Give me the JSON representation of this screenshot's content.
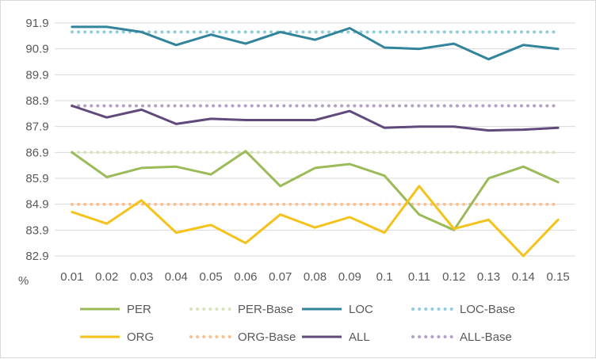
{
  "chart_data": {
    "type": "line",
    "title": "",
    "xlabel": "",
    "ylabel": "%",
    "categories": [
      "0.01",
      "0.02",
      "0.03",
      "0.04",
      "0.05",
      "0.06",
      "0.07",
      "0.08",
      "0.09",
      "0.1",
      "0.11",
      "0.12",
      "0.13",
      "0.14",
      "0.15"
    ],
    "yticks": [
      "82.9",
      "83.9",
      "84.9",
      "85.9",
      "86.9",
      "87.9",
      "88.9",
      "89.9",
      "90.9",
      "91.9"
    ],
    "ylim": [
      82.9,
      91.9
    ],
    "grid": "horizontal",
    "legend_position": "bottom",
    "series": [
      {
        "name": "PER",
        "style": "solid",
        "color": "#9bbb59",
        "values": [
          86.9,
          85.95,
          86.3,
          86.35,
          86.05,
          86.95,
          85.6,
          86.3,
          86.45,
          86.0,
          84.5,
          83.9,
          85.9,
          86.35,
          85.75
        ]
      },
      {
        "name": "PER-Base",
        "style": "dotted",
        "color": "#d7e4bd",
        "values": [
          86.9,
          86.9,
          86.9,
          86.9,
          86.9,
          86.9,
          86.9,
          86.9,
          86.9,
          86.9,
          86.9,
          86.9,
          86.9,
          86.9,
          86.9
        ]
      },
      {
        "name": "LOC",
        "style": "solid",
        "color": "#31849b",
        "values": [
          91.75,
          91.75,
          91.55,
          91.05,
          91.45,
          91.1,
          91.55,
          91.25,
          91.7,
          90.95,
          90.9,
          91.1,
          90.5,
          91.05,
          90.9
        ]
      },
      {
        "name": "LOC-Base",
        "style": "dotted",
        "color": "#92cddc",
        "values": [
          91.55,
          91.55,
          91.55,
          91.55,
          91.55,
          91.55,
          91.55,
          91.55,
          91.55,
          91.55,
          91.55,
          91.55,
          91.55,
          91.55,
          91.55
        ]
      },
      {
        "name": "ORG",
        "style": "solid",
        "color": "#f5c21a",
        "values": [
          84.6,
          84.15,
          85.05,
          83.8,
          84.1,
          83.4,
          84.5,
          84.0,
          84.4,
          83.8,
          85.6,
          83.95,
          84.3,
          82.9,
          84.3
        ]
      },
      {
        "name": "ORG-Base",
        "style": "dotted",
        "color": "#fac090",
        "values": [
          84.9,
          84.9,
          84.9,
          84.9,
          84.9,
          84.9,
          84.9,
          84.9,
          84.9,
          84.9,
          84.9,
          84.9,
          84.9,
          84.9,
          84.9
        ]
      },
      {
        "name": "ALL",
        "style": "solid",
        "color": "#604a7b",
        "values": [
          88.7,
          88.25,
          88.55,
          88.0,
          88.2,
          88.15,
          88.15,
          88.15,
          88.5,
          87.85,
          87.9,
          87.9,
          87.75,
          87.78,
          87.85
        ]
      },
      {
        "name": "ALL-Base",
        "style": "dotted",
        "color": "#b3a2c7",
        "values": [
          88.7,
          88.7,
          88.7,
          88.7,
          88.7,
          88.7,
          88.7,
          88.7,
          88.7,
          88.7,
          88.7,
          88.7,
          88.7,
          88.7,
          88.7
        ]
      }
    ]
  }
}
